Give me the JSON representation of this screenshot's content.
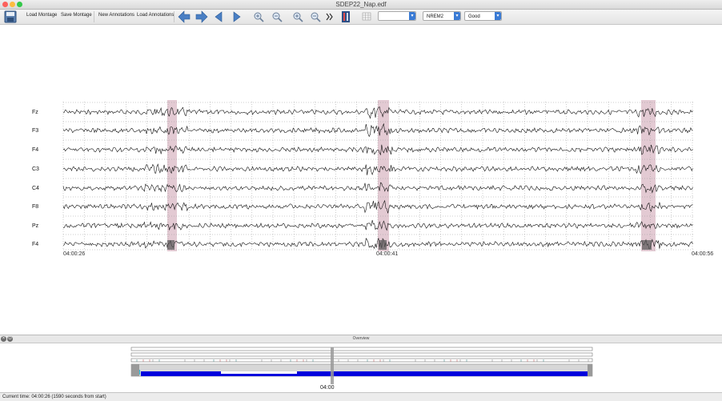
{
  "window": {
    "title": "SDEP22_Nap.edf"
  },
  "toolbar": {
    "load_montage": "Load Montage",
    "save_montage": "Save Montage",
    "new_annotations": "New Annotations",
    "load_annotations": "Load Annotations",
    "icons": [
      "save-icon",
      "arrow-left-big-icon",
      "arrow-right-big-icon",
      "arrow-left-icon",
      "arrow-right-icon",
      "zoom-in-icon",
      "zoom-out-icon",
      "zoom-in-vertical-icon",
      "zoom-out-vertical-icon",
      "fast-forward-icon",
      "montage-icon",
      "grid-icon"
    ],
    "combo_blank": "",
    "stage_select": "NREM2",
    "quality_select": "Good"
  },
  "plot": {
    "channels": [
      "Fz",
      "F3",
      "F4",
      "C3",
      "C4",
      "F8",
      "Pz",
      "F4"
    ],
    "time_labels": [
      "04:00:26",
      "04:00:41",
      "04:00:56"
    ],
    "highlight_color": "#d9b8c4",
    "trace_color": "#111111"
  },
  "overview": {
    "title": "Overview",
    "time_label": "04:00",
    "bar_color": "#0000dd",
    "cursor_color": "#999999"
  },
  "status": {
    "text": "Current time: 04:00:26 (1590 seconds from start)"
  }
}
